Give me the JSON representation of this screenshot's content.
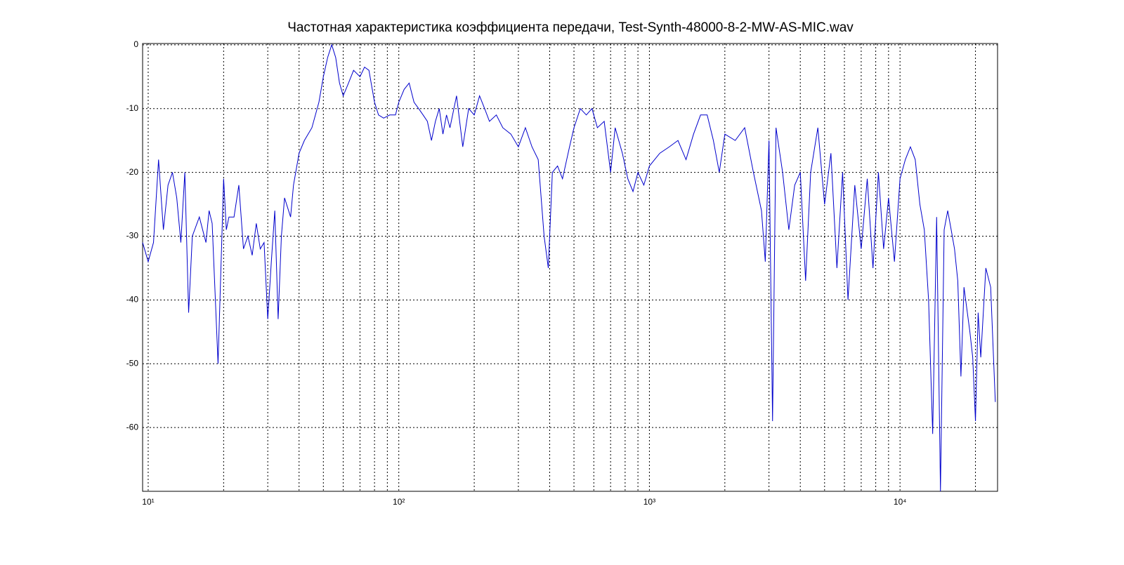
{
  "chart_data": {
    "type": "line",
    "title": "Частотная характеристика коэффициента передачи, Test-Synth-48000-8-2-MW-AS-MIC.wav",
    "xscale": "log",
    "grid": true,
    "xlim": [
      9.5,
      24500
    ],
    "ylim": [
      -70,
      0.2
    ],
    "xticks": [
      {
        "value": 10,
        "label": "10¹"
      },
      {
        "value": 100,
        "label": "10²"
      },
      {
        "value": 1000,
        "label": "10³"
      },
      {
        "value": 10000,
        "label": "10⁴"
      }
    ],
    "xminorticks": [
      20,
      30,
      40,
      50,
      60,
      70,
      80,
      90,
      200,
      300,
      400,
      500,
      600,
      700,
      800,
      900,
      2000,
      3000,
      4000,
      5000,
      6000,
      7000,
      8000,
      9000,
      20000
    ],
    "yticks": [
      0,
      -10,
      -20,
      -30,
      -40,
      -50,
      -60
    ],
    "series": [
      {
        "color": "#0000cc",
        "x": [
          9.5,
          10,
          10.5,
          11,
          11.5,
          12,
          12.5,
          13,
          13.5,
          14,
          14.5,
          15,
          16,
          17,
          17.5,
          18,
          19,
          20,
          20.5,
          21,
          22,
          23,
          24,
          25,
          26,
          27,
          28,
          29,
          30,
          31,
          32,
          33,
          34,
          35,
          37,
          38,
          40,
          42,
          45,
          48,
          50,
          52,
          54,
          56,
          58,
          60,
          63,
          66,
          70,
          73,
          76,
          80,
          83,
          87,
          92,
          97,
          100,
          105,
          110,
          115,
          120,
          125,
          130,
          135,
          140,
          145,
          150,
          155,
          160,
          170,
          180,
          190,
          200,
          210,
          220,
          230,
          245,
          260,
          280,
          300,
          320,
          340,
          360,
          380,
          395,
          410,
          430,
          450,
          480,
          500,
          530,
          560,
          590,
          620,
          660,
          700,
          730,
          780,
          820,
          860,
          900,
          950,
          1000,
          1100,
          1200,
          1300,
          1400,
          1500,
          1600,
          1700,
          1800,
          1900,
          2000,
          2200,
          2400,
          2600,
          2800,
          2900,
          3000,
          3100,
          3200,
          3400,
          3600,
          3800,
          4000,
          4200,
          4400,
          4700,
          5000,
          5300,
          5600,
          5900,
          6200,
          6600,
          7000,
          7400,
          7800,
          8200,
          8600,
          9000,
          9500,
          10000,
          10500,
          11000,
          11500,
          12000,
          12500,
          13000,
          13500,
          14000,
          14500,
          15000,
          15500,
          16000,
          16500,
          17000,
          17500,
          18000,
          19000,
          19500,
          20000,
          20500,
          21000,
          22000,
          23000,
          24000
        ],
        "values": [
          -31,
          -34,
          -31,
          -18,
          -29,
          -22,
          -20,
          -24,
          -31,
          -20,
          -42,
          -30,
          -27,
          -31,
          -26,
          -28,
          -50,
          -21,
          -29,
          -27,
          -27,
          -22,
          -32,
          -30,
          -33,
          -28,
          -32,
          -31,
          -43,
          -34,
          -26,
          -43,
          -30,
          -24,
          -27,
          -22,
          -17,
          -15,
          -13,
          -9,
          -5,
          -2,
          0,
          -2,
          -6,
          -8,
          -6,
          -4,
          -5,
          -3.5,
          -4,
          -9,
          -11,
          -11.5,
          -11,
          -11,
          -9,
          -7,
          -6,
          -9,
          -10,
          -11,
          -12,
          -15,
          -12,
          -10,
          -14,
          -11,
          -13,
          -8,
          -16,
          -10,
          -11,
          -8,
          -10,
          -12,
          -11,
          -13,
          -14,
          -16,
          -13,
          -16,
          -18,
          -30,
          -35,
          -20,
          -19,
          -21,
          -16,
          -13,
          -10,
          -11,
          -10,
          -13,
          -12,
          -20,
          -13,
          -17,
          -21,
          -23,
          -20,
          -22,
          -19,
          -17,
          -16,
          -15,
          -18,
          -14,
          -11,
          -11,
          -15,
          -20,
          -14,
          -15,
          -13,
          -20,
          -26,
          -34,
          -15,
          -59,
          -13,
          -20,
          -29,
          -22,
          -20,
          -37,
          -20,
          -13,
          -25,
          -17,
          -35,
          -20,
          -40,
          -22,
          -32,
          -21,
          -35,
          -20,
          -32,
          -24,
          -34,
          -21,
          -18,
          -16,
          -18,
          -25,
          -29,
          -40,
          -61,
          -27,
          -70,
          -29,
          -26,
          -29,
          -32,
          -37,
          -52,
          -38,
          -45,
          -49,
          -59,
          -42,
          -49,
          -35,
          -38,
          -56
        ]
      }
    ]
  }
}
